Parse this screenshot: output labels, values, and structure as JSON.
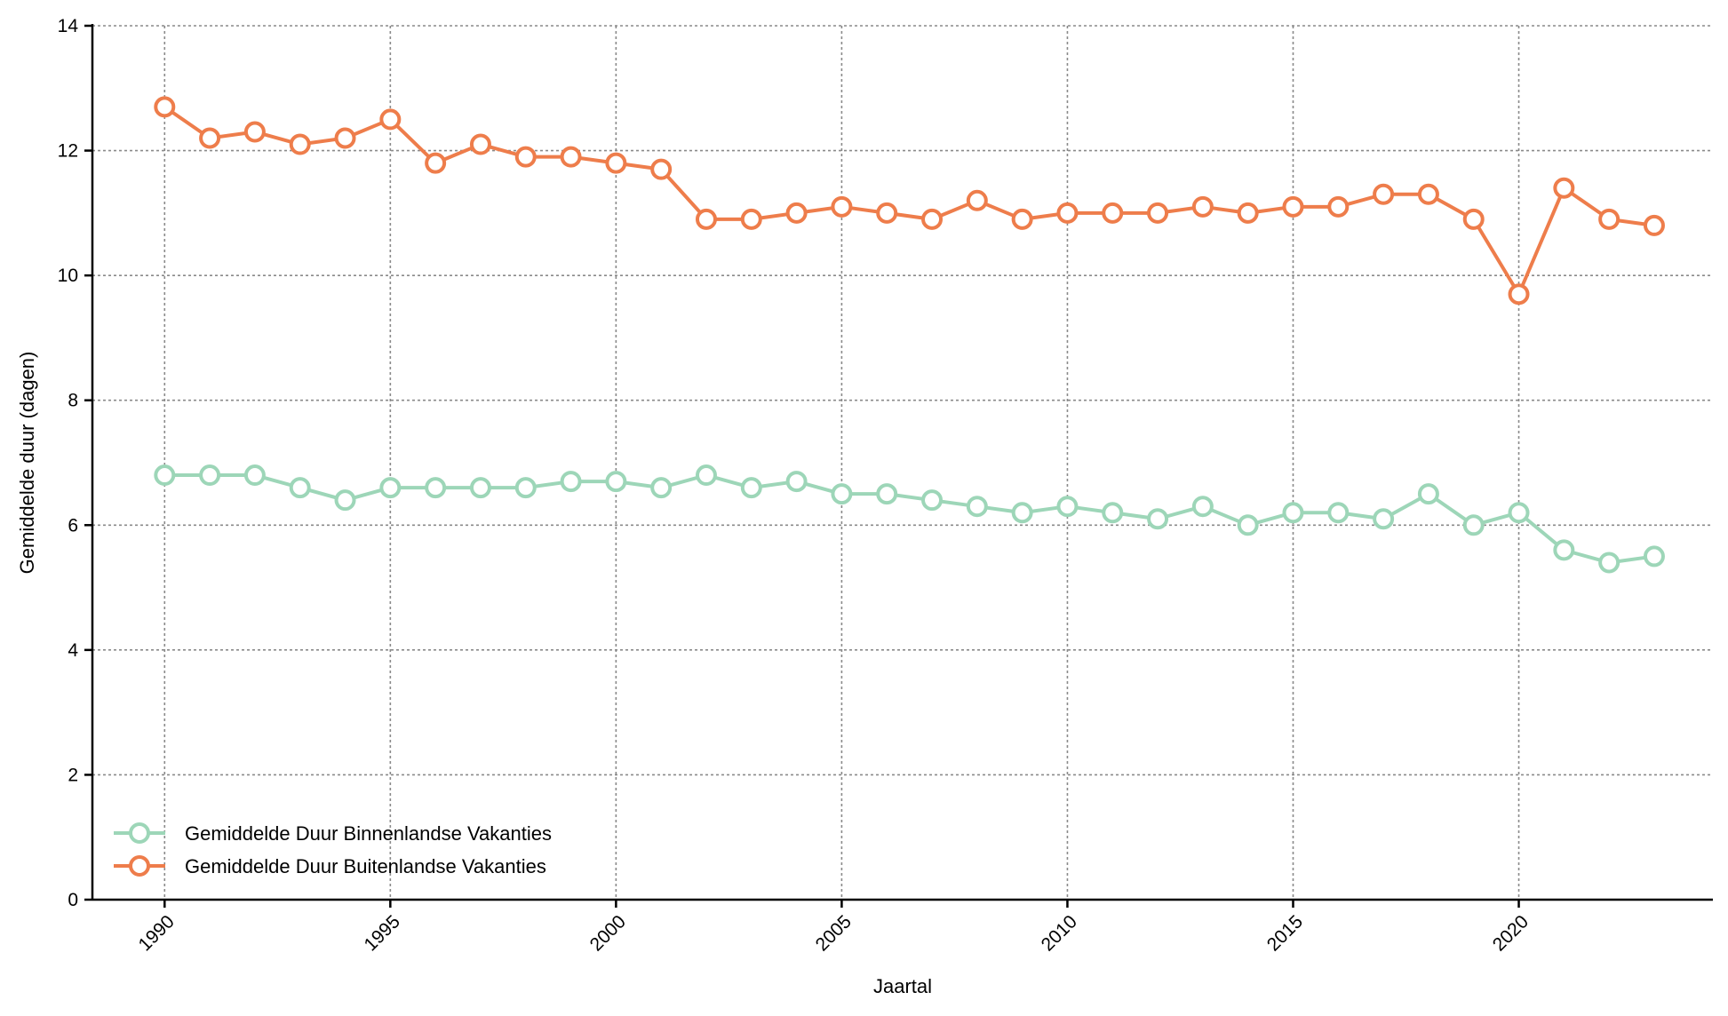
{
  "chart_data": {
    "type": "line",
    "xlabel": "Jaartal",
    "ylabel": "Gemiddelde duur (dagen)",
    "ylim": [
      0,
      14
    ],
    "yticks": [
      0,
      2,
      4,
      6,
      8,
      10,
      12,
      14
    ],
    "xticks": [
      1990,
      1995,
      2000,
      2005,
      2010,
      2015,
      2020
    ],
    "grid": true,
    "legend_position": "bottom-left",
    "x": [
      1990,
      1991,
      1992,
      1993,
      1994,
      1995,
      1996,
      1997,
      1998,
      1999,
      2000,
      2001,
      2002,
      2003,
      2004,
      2005,
      2006,
      2007,
      2008,
      2009,
      2010,
      2011,
      2012,
      2013,
      2014,
      2015,
      2016,
      2017,
      2018,
      2019,
      2020,
      2021,
      2022,
      2023
    ],
    "series": [
      {
        "name": "Gemiddelde Duur Binnenlandse Vakanties",
        "color": "#9dd6b8",
        "values": [
          6.8,
          6.8,
          6.8,
          6.6,
          6.4,
          6.6,
          6.6,
          6.6,
          6.6,
          6.7,
          6.7,
          6.6,
          6.8,
          6.6,
          6.7,
          6.5,
          6.5,
          6.4,
          6.3,
          6.2,
          6.3,
          6.2,
          6.1,
          6.3,
          6.0,
          6.2,
          6.2,
          6.1,
          6.5,
          6.0,
          6.2,
          5.6,
          5.4,
          5.5
        ]
      },
      {
        "name": "Gemiddelde Duur Buitenlandse Vakanties",
        "color": "#ee7d4b",
        "values": [
          12.7,
          12.2,
          12.3,
          12.1,
          12.2,
          12.5,
          11.8,
          12.1,
          11.9,
          11.9,
          11.8,
          11.7,
          10.9,
          10.9,
          11.0,
          11.1,
          11.0,
          10.9,
          11.2,
          10.9,
          11.0,
          11.0,
          11.0,
          11.1,
          11.0,
          11.1,
          11.1,
          11.3,
          11.3,
          10.9,
          9.7,
          11.4,
          10.9,
          10.8
        ]
      }
    ]
  }
}
